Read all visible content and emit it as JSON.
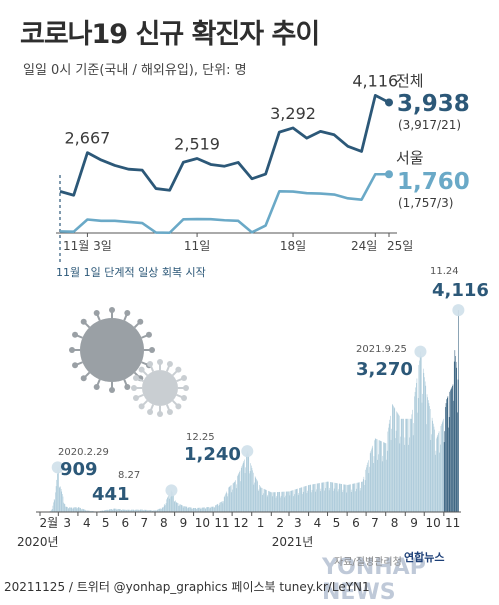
{
  "header": {
    "title": "코로나19 신규 확진자 추이",
    "subtitle": "일일 0시 기준(국내 / 해외유입), 단위: 명"
  },
  "footer": {
    "credit": "20211125 / 트위터 @yonhap_graphics  페이스북 tuney.kr/LeYN1",
    "source": "자료/질병관리청",
    "logo": "연합뉴스",
    "watermark": "YONHAP NEWS"
  },
  "colors": {
    "total": "#2c5878",
    "seoul": "#6aa9c7",
    "bar": "#a8c8d8",
    "bar_recent": "#2c5878",
    "annotation": "#2c5878"
  },
  "chart_data": [
    {
      "type": "line",
      "x": [
        "11-01",
        "11-02",
        "11-03",
        "11-04",
        "11-05",
        "11-06",
        "11-07",
        "11-08",
        "11-09",
        "11-10",
        "11-11",
        "11-12",
        "11-13",
        "11-14",
        "11-15",
        "11-16",
        "11-17",
        "11-18",
        "11-19",
        "11-20",
        "11-21",
        "11-22",
        "11-23",
        "11-24",
        "11-25"
      ],
      "tick_labels": [
        {
          "x": "11-03",
          "label": "11월 3일"
        },
        {
          "x": "11-11",
          "label": "11일"
        },
        {
          "x": "11-18",
          "label": "18일"
        },
        {
          "x": "11-24",
          "label": "24일"
        },
        {
          "x": "11-25",
          "label": "25일"
        }
      ],
      "series": [
        {
          "name": "전체",
          "values": [
            1686,
            1589,
            2667,
            2482,
            2344,
            2248,
            2224,
            1758,
            1715,
            2425,
            2519,
            2368,
            2324,
            2419,
            2006,
            2125,
            3187,
            3292,
            3034,
            3206,
            3120,
            2827,
            2699,
            4116,
            3938
          ]
        },
        {
          "name": "서울",
          "values": [
            676,
            670,
            901,
            877,
            876,
            855,
            833,
            653,
            650,
            905,
            910,
            907,
            887,
            876,
            658,
            787,
            1436,
            1432,
            1401,
            1393,
            1375,
            1303,
            1278,
            1760,
            1760
          ]
        }
      ],
      "labels": [
        {
          "x": "11-03",
          "text": "2,667"
        },
        {
          "x": "11-11",
          "text": "2,519"
        },
        {
          "x": "11-18",
          "text": "3,292"
        },
        {
          "x": "11-24",
          "text": "4,116"
        }
      ],
      "latest": {
        "total": {
          "name": "전체",
          "value": "3,938",
          "detail": "(3,917/21)"
        },
        "seoul": {
          "name": "서울",
          "value": "1,760",
          "detail": "(1,757/3)"
        }
      },
      "annotation": "11월 1일 단계적 일상 회복 시작"
    },
    {
      "type": "bar",
      "x_start": "2020-02-01",
      "x_end": "2021-11-24",
      "anchors": [
        [
          "2020-02-01",
          0
        ],
        [
          "2020-02-15",
          2
        ],
        [
          "2020-02-20",
          60
        ],
        [
          "2020-02-25",
          400
        ],
        [
          "2020-02-29",
          909
        ],
        [
          "2020-03-04",
          520
        ],
        [
          "2020-03-12",
          110
        ],
        [
          "2020-03-20",
          90
        ],
        [
          "2020-04-01",
          100
        ],
        [
          "2020-04-15",
          30
        ],
        [
          "2020-05-01",
          10
        ],
        [
          "2020-05-10",
          30
        ],
        [
          "2020-05-28",
          70
        ],
        [
          "2020-06-15",
          45
        ],
        [
          "2020-07-10",
          50
        ],
        [
          "2020-08-01",
          30
        ],
        [
          "2020-08-14",
          100
        ],
        [
          "2020-08-20",
          290
        ],
        [
          "2020-08-27",
          441
        ],
        [
          "2020-09-03",
          200
        ],
        [
          "2020-09-15",
          120
        ],
        [
          "2020-10-01",
          80
        ],
        [
          "2020-10-15",
          90
        ],
        [
          "2020-11-01",
          110
        ],
        [
          "2020-11-15",
          220
        ],
        [
          "2020-11-25",
          500
        ],
        [
          "2020-12-05",
          620
        ],
        [
          "2020-12-15",
          900
        ],
        [
          "2020-12-25",
          1240
        ],
        [
          "2021-01-03",
          800
        ],
        [
          "2021-01-15",
          500
        ],
        [
          "2021-02-01",
          400
        ],
        [
          "2021-03-01",
          420
        ],
        [
          "2021-04-01",
          550
        ],
        [
          "2021-05-01",
          620
        ],
        [
          "2021-06-01",
          550
        ],
        [
          "2021-06-25",
          620
        ],
        [
          "2021-07-07",
          1200
        ],
        [
          "2021-07-15",
          1500
        ],
        [
          "2021-08-01",
          1400
        ],
        [
          "2021-08-11",
          2200
        ],
        [
          "2021-08-25",
          1900
        ],
        [
          "2021-09-10",
          1900
        ],
        [
          "2021-09-25",
          3270
        ],
        [
          "2021-10-05",
          2400
        ],
        [
          "2021-10-20",
          1500
        ],
        [
          "2021-10-31",
          1900
        ],
        [
          "2021-11-05",
          2300
        ],
        [
          "2021-11-15",
          2600
        ],
        [
          "2021-11-18",
          3300
        ],
        [
          "2021-11-23",
          2700
        ],
        [
          "2021-11-24",
          4116
        ]
      ],
      "peaks": [
        {
          "date": "2020-02-29",
          "label": "2020.2.29",
          "value": "909"
        },
        {
          "date": "2020-08-27",
          "label": "8.27",
          "value": "441"
        },
        {
          "date": "2020-12-25",
          "label": "12.25",
          "value": "1,240"
        },
        {
          "date": "2021-09-25",
          "label": "2021.9.25",
          "value": "3,270"
        },
        {
          "date": "2021-11-24",
          "label": "11.24",
          "value": "4,116"
        }
      ],
      "month_labels": [
        "2월",
        "3",
        "4",
        "5",
        "6",
        "7",
        "8",
        "9",
        "10",
        "11",
        "12",
        "1",
        "2",
        "3",
        "4",
        "5",
        "6",
        "7",
        "8",
        "9",
        "10",
        "11"
      ],
      "year_labels": [
        "2020년",
        "2021년"
      ],
      "ylim": [
        0,
        4200
      ]
    }
  ]
}
